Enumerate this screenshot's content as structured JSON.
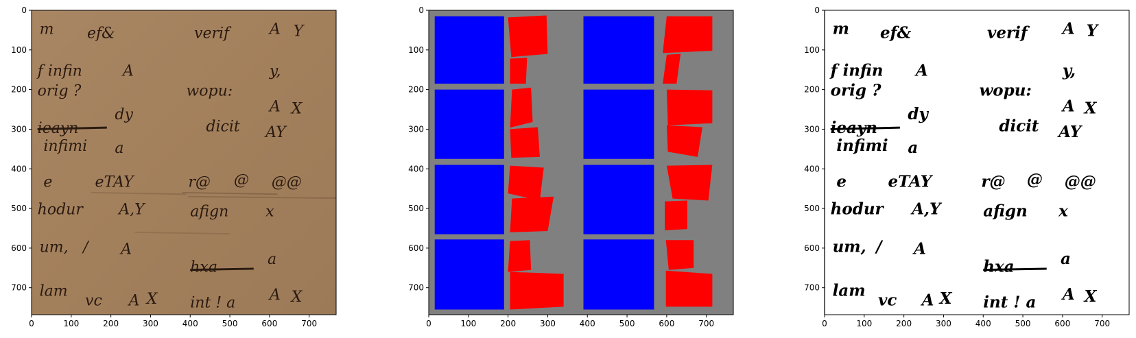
{
  "figure": {
    "panels": [
      {
        "id": "panel-manuscript",
        "kind": "manuscript-photo",
        "x_ticks": [
          "0",
          "100",
          "200",
          "300",
          "400",
          "500",
          "600",
          "700"
        ],
        "y_ticks": [
          "0",
          "100",
          "200",
          "300",
          "400",
          "500",
          "600",
          "700"
        ],
        "colors": {
          "parchment": "#a8835f",
          "ink": "#2a1a10"
        }
      },
      {
        "id": "panel-layout",
        "kind": "region-layout",
        "x_ticks": [
          "0",
          "100",
          "200",
          "300",
          "400",
          "500",
          "600",
          "700"
        ],
        "y_ticks": [
          "0",
          "100",
          "200",
          "300",
          "400",
          "500",
          "600",
          "700"
        ],
        "colors": {
          "background": "#808080",
          "blue": "#0000ff",
          "red": "#ff0000"
        }
      },
      {
        "id": "panel-binarized",
        "kind": "binarized-image",
        "x_ticks": [
          "0",
          "100",
          "200",
          "300",
          "400",
          "500",
          "600",
          "700"
        ],
        "y_ticks": [
          "0",
          "100",
          "200",
          "300",
          "400",
          "500",
          "600",
          "700"
        ],
        "colors": {
          "background": "#ffffff",
          "ink": "#000000"
        }
      }
    ],
    "axis_range": {
      "x": [
        0,
        768
      ],
      "y": [
        768,
        0
      ]
    },
    "handwriting": [
      {
        "text": "m",
        "x": 20,
        "y": 60
      },
      {
        "text": "ef&",
        "x": 140,
        "y": 70
      },
      {
        "text": "verif",
        "x": 410,
        "y": 70
      },
      {
        "text": "A",
        "x": 600,
        "y": 60
      },
      {
        "text": "Y",
        "x": 660,
        "y": 65
      },
      {
        "text": "f infin",
        "x": 15,
        "y": 165
      },
      {
        "text": "A",
        "x": 230,
        "y": 165
      },
      {
        "text": "y,",
        "x": 600,
        "y": 165
      },
      {
        "text": "orig  ?",
        "x": 15,
        "y": 215
      },
      {
        "text": "wopu:",
        "x": 390,
        "y": 215
      },
      {
        "text": "dy",
        "x": 210,
        "y": 275
      },
      {
        "text": "A",
        "x": 600,
        "y": 255
      },
      {
        "text": "X",
        "x": 655,
        "y": 260
      },
      {
        "text": "ieayn",
        "x": 15,
        "y": 310
      },
      {
        "text": "dicit",
        "x": 440,
        "y": 305
      },
      {
        "text": "AY",
        "x": 590,
        "y": 320
      },
      {
        "text": "infimi",
        "x": 30,
        "y": 355
      },
      {
        "text": "a",
        "x": 210,
        "y": 360
      },
      {
        "text": "e",
        "x": 30,
        "y": 445
      },
      {
        "text": "eTAY",
        "x": 160,
        "y": 445
      },
      {
        "text": "r@",
        "x": 395,
        "y": 445
      },
      {
        "text": "@",
        "x": 510,
        "y": 440
      },
      {
        "text": "@@",
        "x": 605,
        "y": 445
      },
      {
        "text": "hodur",
        "x": 15,
        "y": 515
      },
      {
        "text": "A,Y",
        "x": 220,
        "y": 515
      },
      {
        "text": "afign",
        "x": 400,
        "y": 520
      },
      {
        "text": "x",
        "x": 590,
        "y": 520
      },
      {
        "text": "um,",
        "x": 20,
        "y": 610
      },
      {
        "text": "/",
        "x": 130,
        "y": 610
      },
      {
        "text": "A",
        "x": 225,
        "y": 615
      },
      {
        "text": "hxa",
        "x": 400,
        "y": 660
      },
      {
        "text": "a",
        "x": 595,
        "y": 640
      },
      {
        "text": "lam",
        "x": 20,
        "y": 720
      },
      {
        "text": "vc",
        "x": 135,
        "y": 745
      },
      {
        "text": "A",
        "x": 245,
        "y": 745
      },
      {
        "text": "X",
        "x": 290,
        "y": 740
      },
      {
        "text": "int ! a",
        "x": 400,
        "y": 750
      },
      {
        "text": "A",
        "x": 600,
        "y": 730
      },
      {
        "text": "X",
        "x": 655,
        "y": 735
      }
    ],
    "layout_regions": {
      "blue": [
        [
          [
            15,
            15
          ],
          [
            190,
            15
          ],
          [
            190,
            185
          ],
          [
            15,
            185
          ]
        ],
        [
          [
            15,
            200
          ],
          [
            190,
            200
          ],
          [
            190,
            375
          ],
          [
            15,
            375
          ]
        ],
        [
          [
            15,
            390
          ],
          [
            190,
            390
          ],
          [
            190,
            565
          ],
          [
            15,
            565
          ]
        ],
        [
          [
            15,
            578
          ],
          [
            190,
            578
          ],
          [
            190,
            755
          ],
          [
            15,
            755
          ]
        ],
        [
          [
            390,
            15
          ],
          [
            568,
            15
          ],
          [
            568,
            185
          ],
          [
            390,
            185
          ]
        ],
        [
          [
            390,
            200
          ],
          [
            568,
            200
          ],
          [
            568,
            375
          ],
          [
            390,
            375
          ]
        ],
        [
          [
            390,
            390
          ],
          [
            568,
            390
          ],
          [
            568,
            565
          ],
          [
            390,
            565
          ]
        ],
        [
          [
            390,
            578
          ],
          [
            568,
            578
          ],
          [
            568,
            755
          ],
          [
            390,
            755
          ]
        ]
      ],
      "red": [
        [
          [
            200,
            18
          ],
          [
            297,
            13
          ],
          [
            300,
            110
          ],
          [
            208,
            118
          ]
        ],
        [
          [
            205,
            122
          ],
          [
            248,
            120
          ],
          [
            245,
            185
          ],
          [
            205,
            185
          ]
        ],
        [
          [
            210,
            200
          ],
          [
            258,
            195
          ],
          [
            262,
            282
          ],
          [
            205,
            296
          ]
        ],
        [
          [
            205,
            300
          ],
          [
            275,
            295
          ],
          [
            280,
            370
          ],
          [
            208,
            372
          ]
        ],
        [
          [
            205,
            392
          ],
          [
            290,
            397
          ],
          [
            280,
            480
          ],
          [
            200,
            462
          ]
        ],
        [
          [
            210,
            475
          ],
          [
            315,
            470
          ],
          [
            300,
            557
          ],
          [
            205,
            560
          ]
        ],
        [
          [
            205,
            582
          ],
          [
            255,
            580
          ],
          [
            258,
            655
          ],
          [
            200,
            660
          ]
        ],
        [
          [
            205,
            660
          ],
          [
            340,
            665
          ],
          [
            340,
            748
          ],
          [
            205,
            755
          ]
        ],
        [
          [
            600,
            15
          ],
          [
            715,
            15
          ],
          [
            715,
            102
          ],
          [
            590,
            108
          ]
        ],
        [
          [
            600,
            112
          ],
          [
            635,
            110
          ],
          [
            625,
            185
          ],
          [
            590,
            185
          ]
        ],
        [
          [
            600,
            200
          ],
          [
            715,
            202
          ],
          [
            715,
            285
          ],
          [
            603,
            290
          ]
        ],
        [
          [
            600,
            290
          ],
          [
            690,
            295
          ],
          [
            678,
            370
          ],
          [
            603,
            357
          ]
        ],
        [
          [
            600,
            392
          ],
          [
            715,
            390
          ],
          [
            705,
            480
          ],
          [
            615,
            475
          ]
        ],
        [
          [
            595,
            482
          ],
          [
            652,
            480
          ],
          [
            652,
            552
          ],
          [
            595,
            555
          ]
        ],
        [
          [
            598,
            580
          ],
          [
            668,
            580
          ],
          [
            668,
            650
          ],
          [
            605,
            655
          ]
        ],
        [
          [
            598,
            657
          ],
          [
            715,
            665
          ],
          [
            715,
            748
          ],
          [
            598,
            748
          ]
        ]
      ]
    }
  }
}
